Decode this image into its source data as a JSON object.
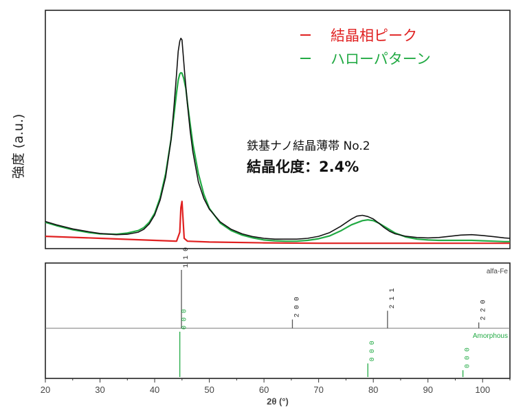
{
  "chart_data": [
    {
      "type": "line",
      "ylabel": "強度 (a.u.)",
      "xlim": [
        20,
        105
      ],
      "legend_position": "top-right",
      "grid": false,
      "annotation": {
        "sample": "鉄基ナノ結晶薄帯  No.2",
        "crystallinity": "結晶化度：2.4%"
      },
      "series": [
        {
          "name": "",
          "color": "#111111",
          "x": [
            20,
            22,
            25,
            28,
            30,
            33,
            35,
            37,
            38,
            39,
            40,
            41,
            42,
            43,
            43.5,
            44,
            44.3,
            44.6,
            44.8,
            45,
            45.2,
            45.5,
            46,
            46.5,
            47,
            48,
            49,
            50,
            52,
            54,
            56,
            58,
            60,
            62,
            64,
            66,
            68,
            70,
            72,
            74,
            75,
            76,
            77,
            78,
            79,
            80,
            81,
            82,
            83,
            84,
            86,
            88,
            90,
            92,
            94,
            96,
            98,
            100,
            102,
            104,
            105
          ],
          "y": [
            6.6,
            5.8,
            4.8,
            4.1,
            3.7,
            3.4,
            3.5,
            4.0,
            4.7,
            6.0,
            8.2,
            11.8,
            17.4,
            26.5,
            34,
            42.5,
            48,
            50.5,
            51.2,
            50.8,
            47.5,
            42.5,
            35,
            28.5,
            23.5,
            16.2,
            12.2,
            9.6,
            6.5,
            4.7,
            3.6,
            2.9,
            2.5,
            2.3,
            2.3,
            2.3,
            2.5,
            3.0,
            3.9,
            5.4,
            6.3,
            7.2,
            7.9,
            8.1,
            7.8,
            7.2,
            6.2,
            5.1,
            4.2,
            3.6,
            3.0,
            2.7,
            2.6,
            2.7,
            3.0,
            3.3,
            3.4,
            3.2,
            2.9,
            2.6,
            2.5
          ]
        },
        {
          "name": "結晶相ピーク",
          "color": "#e02020",
          "x": [
            20,
            30,
            40,
            44,
            44.6,
            44.8,
            45,
            45.2,
            45.4,
            46,
            50,
            60,
            70,
            80,
            90,
            100,
            105
          ],
          "y": [
            3.0,
            2.5,
            2.0,
            1.8,
            4,
            10,
            11.5,
            7,
            2.5,
            1.8,
            1.6,
            1.4,
            1.3,
            1.3,
            1.3,
            1.3,
            1.3
          ]
        },
        {
          "name": "ハローパターン",
          "color": "#22aa44",
          "x": [
            20,
            22,
            25,
            28,
            30,
            33,
            35,
            37,
            38,
            39,
            40,
            41,
            42,
            43,
            43.5,
            44,
            44.3,
            44.6,
            44.8,
            45,
            45.3,
            45.7,
            46,
            46.5,
            47,
            48,
            49,
            50,
            52,
            54,
            56,
            58,
            60,
            62,
            64,
            66,
            68,
            70,
            72,
            74,
            76,
            78,
            79,
            80,
            81,
            82,
            84,
            86,
            88,
            90,
            92,
            94,
            96,
            98,
            100,
            102,
            104,
            105
          ],
          "y": [
            6.4,
            5.6,
            4.6,
            3.9,
            3.6,
            3.5,
            3.8,
            4.4,
            5.1,
            6.4,
            8.6,
            12.4,
            18.2,
            26.6,
            32.2,
            38,
            41,
            42.5,
            42.8,
            42.7,
            41.5,
            39,
            35.4,
            30.2,
            25.4,
            18.2,
            13.2,
            9.8,
            6.2,
            4.4,
            3.3,
            2.6,
            2.1,
            1.9,
            1.8,
            1.8,
            2.0,
            2.4,
            3.1,
            4.3,
            5.8,
            6.8,
            7.0,
            6.8,
            6.2,
            5.4,
            3.8,
            2.8,
            2.3,
            2.1,
            2.0,
            2.0,
            2.0,
            2.0,
            1.9,
            1.8,
            1.7,
            1.7
          ]
        }
      ]
    },
    {
      "type": "bar",
      "xlabel": "2θ (°)",
      "xlim": [
        20,
        105
      ],
      "xticks": [
        20,
        30,
        40,
        50,
        60,
        70,
        80,
        90,
        100
      ],
      "xtick_labels": [
        "20",
        "30",
        "40",
        "50",
        "60",
        "70",
        "80",
        "90",
        "100"
      ],
      "series": [
        {
          "name": "alfa-Fe",
          "color": "#555555",
          "peaks": [
            {
              "x": 44.9,
              "intensity": 100,
              "label": "1 1 0"
            },
            {
              "x": 65.2,
              "intensity": 15,
              "label": "2 0 0"
            },
            {
              "x": 82.6,
              "intensity": 30,
              "label": "2 1 1"
            },
            {
              "x": 99.3,
              "intensity": 10,
              "label": "2 2 0"
            }
          ]
        },
        {
          "name": "Amorphous",
          "color": "#22aa44",
          "peaks": [
            {
              "x": 44.6,
              "intensity": 100,
              "label": "0 0 0"
            },
            {
              "x": 79.0,
              "intensity": 30,
              "label": "0 0 0"
            },
            {
              "x": 96.4,
              "intensity": 15,
              "label": "0 0 0"
            }
          ]
        }
      ]
    }
  ]
}
